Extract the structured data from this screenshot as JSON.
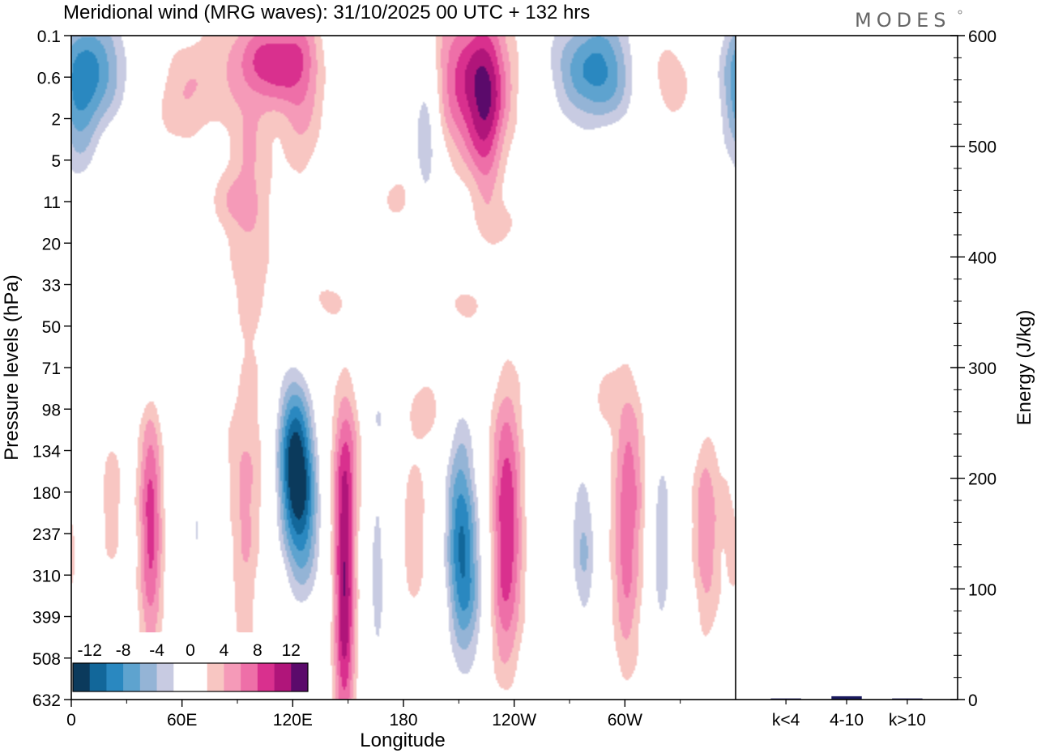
{
  "chart_data": {
    "type": "contour",
    "title": "Meridional wind (MRG waves):  31/10/2025  00 UTC  + 132 hrs",
    "logo": "MODES",
    "xlabel": "Longitude",
    "ylabel": "Pressure levels (hPa)",
    "y2label": "Energy (J/kg)",
    "x_ticks": [
      "0",
      "60E",
      "120E",
      "180",
      "120W",
      "60W"
    ],
    "pressure_levels": [
      "0.1",
      "0.6",
      "2",
      "5",
      "11",
      "20",
      "33",
      "50",
      "71",
      "98",
      "134",
      "180",
      "237",
      "310",
      "399",
      "508",
      "632"
    ],
    "energy_ticks": [
      "0",
      "100",
      "200",
      "300",
      "400",
      "500",
      "600"
    ],
    "energy_ylim": [
      0,
      600
    ],
    "energy_bars": [
      {
        "category": "k<4",
        "value": 1
      },
      {
        "category": "4-10",
        "value": 3
      },
      {
        "category": "k>10",
        "value": 1
      }
    ],
    "colorbar": {
      "labels": [
        "-12",
        "-8",
        "-4",
        "0",
        "4",
        "8",
        "12"
      ],
      "levels": [
        -14,
        -12,
        -10,
        -8,
        -6,
        -4,
        -2,
        2,
        4,
        6,
        8,
        10,
        12,
        14
      ],
      "colors": [
        "#0b3a5c",
        "#12679a",
        "#2a88c0",
        "#5ea3cf",
        "#94b4d6",
        "#c8cbe2",
        "#ffffff",
        "#ffffff",
        "#f8c6c2",
        "#f59ab8",
        "#ee6fa8",
        "#d9308e",
        "#b0157a",
        "#5b0a6b"
      ]
    },
    "features": [
      {
        "lon": 12,
        "lev": 0.8,
        "dlon": 14,
        "dlev": 1.1,
        "amp": -9
      },
      {
        "lon": 3,
        "lev": 2.0,
        "dlon": 8,
        "dlev": 1.5,
        "amp": -5
      },
      {
        "lon": 110,
        "lev": 0.6,
        "dlon": 12,
        "dlev": 0.7,
        "amp": 8
      },
      {
        "lon": 125,
        "lev": 1.3,
        "dlon": 8,
        "dlev": 1.5,
        "amp": 5
      },
      {
        "lon": 97,
        "lev": 3.6,
        "dlon": 9,
        "dlev": 3.0,
        "amp": 4
      },
      {
        "lon": 75,
        "lev": 0.8,
        "dlon": 12,
        "dlev": 1.0,
        "amp": 3
      },
      {
        "lon": 57,
        "lev": 1.6,
        "dlon": 10,
        "dlev": 0.8,
        "amp": 3
      },
      {
        "lon": 192,
        "lev": 2.4,
        "dlon": 5,
        "dlev": 1.5,
        "amp": -7
      },
      {
        "lon": 218,
        "lev": 1.1,
        "dlon": 15,
        "dlev": 1.3,
        "amp": 10
      },
      {
        "lon": 225,
        "lev": 2.3,
        "dlon": 6,
        "dlev": 1.6,
        "amp": 5
      },
      {
        "lon": 285,
        "lev": 0.8,
        "dlon": 18,
        "dlev": 1.0,
        "amp": -11
      },
      {
        "lon": 325,
        "lev": 1.3,
        "dlon": 8,
        "dlev": 0.6,
        "amp": 3.5
      },
      {
        "lon": 312,
        "lev": 0.6,
        "dlon": 12,
        "dlev": 0.6,
        "amp": 3
      },
      {
        "lon": 260,
        "lev": 3.9,
        "dlon": 12,
        "dlev": 1.0,
        "amp": -3
      },
      {
        "lon": 85,
        "lev": 4.0,
        "dlon": 7,
        "dlev": 0.5,
        "amp": 2.5
      },
      {
        "lon": 37,
        "lev": 3.8,
        "dlon": 8,
        "dlev": 0.5,
        "amp": -2.5
      },
      {
        "lon": 158,
        "lev": 5.5,
        "dlon": 12,
        "dlev": 0.5,
        "amp": -2.5
      },
      {
        "lon": 180,
        "lev": 3.9,
        "dlon": 10,
        "dlev": 0.5,
        "amp": 2.5
      },
      {
        "lon": 140,
        "lev": 6.3,
        "dlon": 10,
        "dlev": 0.4,
        "amp": 2.5
      },
      {
        "lon": 212,
        "lev": 6.5,
        "dlon": 9,
        "dlev": 0.4,
        "amp": 2.5
      },
      {
        "lon": 235,
        "lev": 4.5,
        "dlon": 8,
        "dlev": 0.4,
        "amp": 2.5
      },
      {
        "lon": 40,
        "lev": 8.0,
        "dlon": 16,
        "dlev": 0.8,
        "amp": -2.6
      },
      {
        "lon": 343,
        "lev": 8.3,
        "dlon": 14,
        "dlev": 1.2,
        "amp": -2.6
      },
      {
        "lon": 7,
        "lev": 6.7,
        "dlon": 8,
        "dlev": 0.6,
        "amp": -2.4
      },
      {
        "lon": 7,
        "lev": 10.5,
        "dlon": 6,
        "dlev": 1.3,
        "amp": -3.5
      },
      {
        "lon": 21,
        "lev": 11.0,
        "dlon": 6,
        "dlev": 1.5,
        "amp": 3
      },
      {
        "lon": 43,
        "lev": 11.8,
        "dlon": 4.5,
        "dlev": 2.2,
        "amp": 9
      },
      {
        "lon": 68,
        "lev": 12.0,
        "dlon": 4,
        "dlev": 2.2,
        "amp": -4
      },
      {
        "lon": 95,
        "lev": 10.5,
        "dlon": 8,
        "dlev": 1.4,
        "amp": 3.5
      },
      {
        "lon": 94,
        "lev": 13.5,
        "dlon": 5,
        "dlev": 1.8,
        "amp": 3
      },
      {
        "lon": 121,
        "lev": 10.2,
        "dlon": 7,
        "dlev": 1.4,
        "amp": -14
      },
      {
        "lon": 126,
        "lev": 12.0,
        "dlon": 7,
        "dlev": 1.5,
        "amp": -7
      },
      {
        "lon": 148,
        "lev": 13.6,
        "dlon": 4,
        "dlev": 2.4,
        "amp": 12
      },
      {
        "lon": 149,
        "lev": 10.2,
        "dlon": 6,
        "dlev": 1.3,
        "amp": 5
      },
      {
        "lon": 166,
        "lev": 13.0,
        "dlon": 4,
        "dlev": 2.2,
        "amp": -5
      },
      {
        "lon": 166,
        "lev": 9.1,
        "dlon": 6,
        "dlev": 0.6,
        "amp": -3
      },
      {
        "lon": 186,
        "lev": 12.1,
        "dlon": 5,
        "dlev": 1.5,
        "amp": 3.5
      },
      {
        "lon": 192,
        "lev": 9.0,
        "dlon": 7,
        "dlev": 0.6,
        "amp": 3
      },
      {
        "lon": 211,
        "lev": 12.1,
        "dlon": 6,
        "dlev": 2.0,
        "amp": -11
      },
      {
        "lon": 219,
        "lev": 13.5,
        "dlon": 7,
        "dlev": 1.5,
        "amp": -4
      },
      {
        "lon": 236,
        "lev": 11.2,
        "dlon": 6,
        "dlev": 2.0,
        "amp": 9
      },
      {
        "lon": 234,
        "lev": 13.8,
        "dlon": 7,
        "dlev": 1.4,
        "amp": 4
      },
      {
        "lon": 262,
        "lev": 11.2,
        "dlon": 7,
        "dlev": 1.6,
        "amp": -3.5
      },
      {
        "lon": 278,
        "lev": 12.5,
        "dlon": 5,
        "dlev": 1.6,
        "amp": -6
      },
      {
        "lon": 302,
        "lev": 11.0,
        "dlon": 6,
        "dlev": 2.0,
        "amp": 7
      },
      {
        "lon": 300,
        "lev": 13.8,
        "dlon": 5,
        "dlev": 1.4,
        "amp": 3
      },
      {
        "lon": 289,
        "lev": 8.8,
        "dlon": 5,
        "dlev": 0.6,
        "amp": 2.5
      },
      {
        "lon": 320,
        "lev": 12.4,
        "dlon": 4,
        "dlev": 1.8,
        "amp": -6
      },
      {
        "lon": 344,
        "lev": 11.8,
        "dlon": 5,
        "dlev": 1.8,
        "amp": 6
      },
      {
        "lon": 336,
        "lev": 8.6,
        "dlon": 8,
        "dlev": 0.6,
        "amp": 2.5
      },
      {
        "lon": 356,
        "lev": 11.0,
        "dlon": 4,
        "dlev": 1.5,
        "amp": 2.4
      },
      {
        "lon": 0,
        "lev": 12.4,
        "dlon": 3,
        "dlev": 0.8,
        "amp": 2.8
      }
    ]
  }
}
